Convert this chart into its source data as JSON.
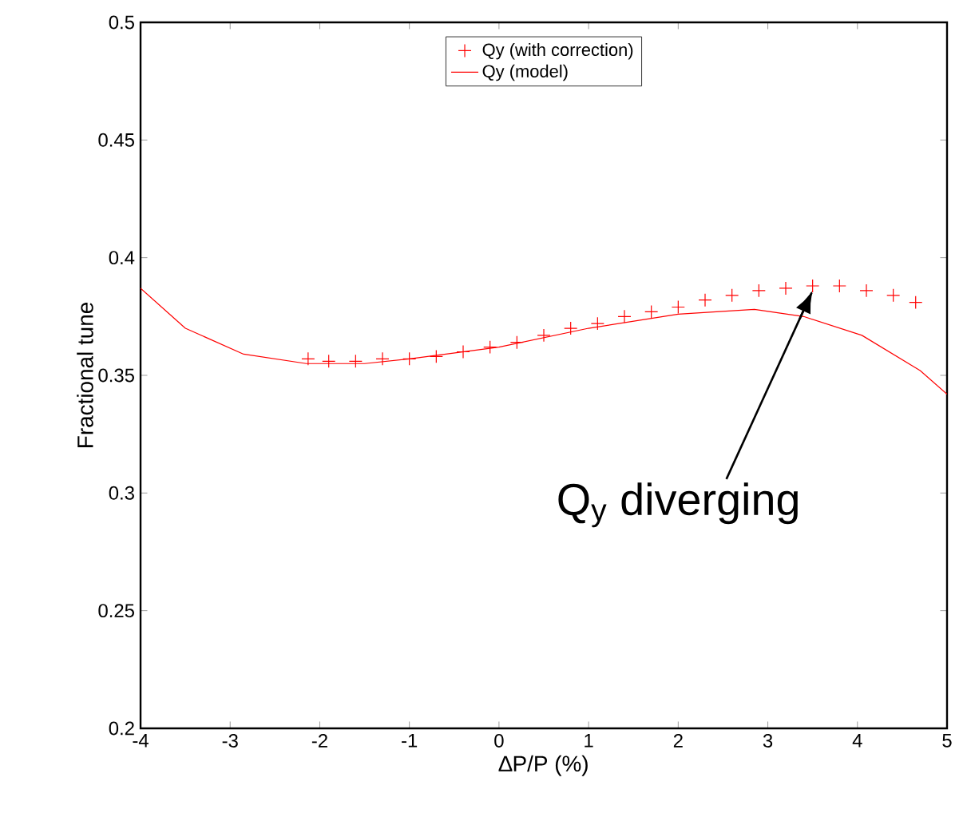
{
  "chart_data": {
    "type": "line",
    "xlabel": "∆P/P (%)",
    "ylabel": "Fractional tune",
    "xlim": [
      -4,
      5
    ],
    "xticks": [
      -4,
      -3,
      -2,
      -1,
      0,
      1,
      2,
      3,
      4,
      5
    ],
    "ylim": [
      0.2,
      0.5
    ],
    "yticks": [
      0.2,
      0.25,
      0.3,
      0.35,
      0.4,
      0.45,
      0.5
    ],
    "legend": "top",
    "grid": false,
    "annotations": [
      {
        "text": "Q$_{y}$ diverging",
        "x": 3.5,
        "y": 0.386
      }
    ],
    "series": [
      {
        "name": "Qy (with correction)",
        "type": "scatter",
        "marker": "cross",
        "color": "#ff0000",
        "x": [
          -2.13,
          -1.9,
          -1.6,
          -1.3,
          -1.0,
          -0.7,
          -0.4,
          -0.1,
          0.2,
          0.5,
          0.8,
          1.1,
          1.4,
          1.7,
          2.0,
          2.3,
          2.6,
          2.9,
          3.2,
          3.5,
          3.8,
          4.1,
          4.4,
          4.65
        ],
        "values": [
          0.357,
          0.356,
          0.356,
          0.357,
          0.357,
          0.358,
          0.36,
          0.362,
          0.364,
          0.367,
          0.37,
          0.372,
          0.375,
          0.377,
          0.379,
          0.382,
          0.384,
          0.386,
          0.387,
          0.388,
          0.388,
          0.386,
          0.384,
          0.381
        ]
      },
      {
        "name": "Qy (model)",
        "marker": "none",
        "color": "#ff0000",
        "x": [
          -4,
          -3.5,
          -2.85,
          -2.15,
          -1.5,
          -1,
          0,
          1,
          2,
          2.85,
          3.4,
          4.05,
          4.7,
          5
        ],
        "values": [
          0.387,
          0.37,
          0.359,
          0.355,
          0.355,
          0.357,
          0.362,
          0.37,
          0.376,
          0.378,
          0.375,
          0.367,
          0.352,
          0.342
        ]
      }
    ]
  }
}
